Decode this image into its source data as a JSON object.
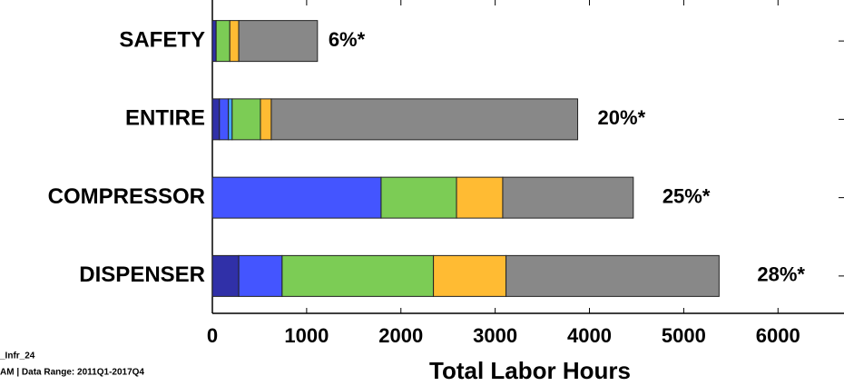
{
  "chart_data": {
    "type": "stacked_barh",
    "xlabel": "Total Labor Hours",
    "categories": [
      "SAFETY",
      "ENTIRE",
      "COMPRESSOR",
      "DISPENSER"
    ],
    "series": [
      {
        "color": "#3030a8",
        "values": [
          40,
          75,
          0,
          280
        ]
      },
      {
        "color": "#4455ff",
        "values": [
          0,
          95,
          1790,
          460
        ]
      },
      {
        "color": "#44aaff",
        "values": [
          0,
          40,
          0,
          0
        ]
      },
      {
        "color": "#7ccc55",
        "values": [
          145,
          300,
          800,
          1605
        ]
      },
      {
        "color": "#ffbb33",
        "values": [
          95,
          115,
          490,
          770
        ]
      },
      {
        "color": "#888888",
        "values": [
          835,
          3250,
          1385,
          2260
        ]
      }
    ],
    "annotations": [
      "6%*",
      "20%*",
      "25%*",
      "28%*"
    ],
    "xlim": [
      0,
      6700
    ],
    "xticks": [
      0,
      1000,
      2000,
      3000,
      4000,
      5000,
      6000
    ],
    "footnotes": [
      "_Infr_24",
      "AM | Data Range: 2011Q1-2017Q4"
    ]
  }
}
